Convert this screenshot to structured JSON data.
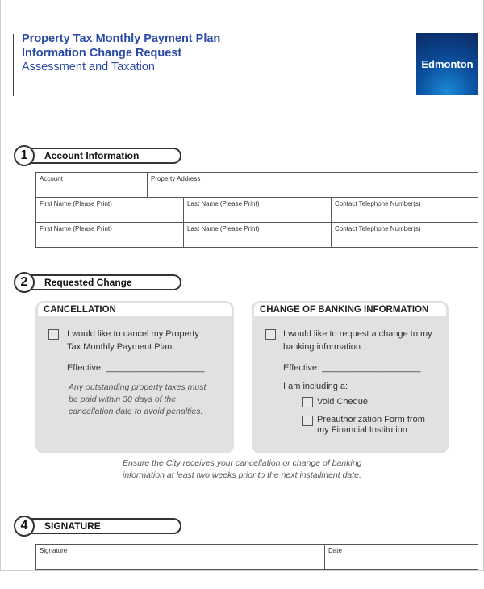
{
  "header": {
    "title_line1": "Property Tax Monthly Payment Plan",
    "title_line2": "Information Change Request",
    "subtitle": "Assessment and Taxation",
    "logo_text": "Edmonton"
  },
  "section1": {
    "number": "1",
    "title": "Account Information",
    "fields": {
      "account": "Account",
      "property_address": "Property Address",
      "first_name": "First Name (Please Print)",
      "last_name": "Last Name (Please Print)",
      "phone": "Contact Telephone Number(s)"
    }
  },
  "section2": {
    "number": "2",
    "title": "Requested Change",
    "cancellation": {
      "heading": "CANCELLATION",
      "checkbox_label": "I would like to cancel my Property Tax Monthly Payment Plan.",
      "effective": "Effective: ____________________",
      "note": "Any outstanding property taxes must be paid within 30 days of the cancellation date to avoid penalties."
    },
    "banking": {
      "heading": "CHANGE OF BANKING INFORMATION",
      "checkbox_label": "I would like to request a change to my banking information.",
      "effective": "Effective: ____________________",
      "including": "I am including a:",
      "option1": "Void Cheque",
      "option2": "Preauthorization Form from my Financial Institution"
    },
    "note": "Ensure the City receives your cancellation or change of banking information at least two weeks prior to the next installment date."
  },
  "section4": {
    "number": "4",
    "title": "SIGNATURE",
    "signature": "Signature",
    "date": "Date"
  }
}
